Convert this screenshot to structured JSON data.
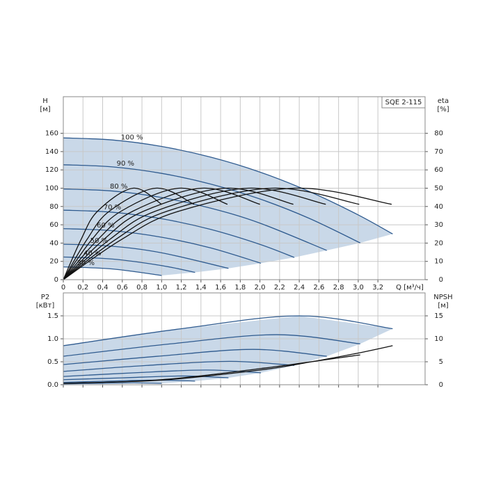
{
  "chart_data": [
    {
      "type": "line",
      "title": "SQE 2-115",
      "y_label": "H",
      "y_unit": "[м]",
      "y2_label": "eta",
      "y2_unit": "[%]",
      "x_label": "Q [м³/ч]",
      "xlim": [
        0,
        3.68
      ],
      "ylim": [
        0,
        200
      ],
      "y2lim": [
        0,
        100
      ],
      "grid": true,
      "x_tick_labels": true,
      "area_color": "#c9d8e8",
      "xticks": [
        0,
        {
          "value": 0.2,
          "label": "0,2"
        },
        {
          "value": 0.4,
          "label": "0,4"
        },
        {
          "value": 0.6,
          "label": "0,6"
        },
        {
          "value": 0.8,
          "label": "0,8"
        },
        {
          "value": 1.0,
          "label": "1,0"
        },
        {
          "value": 1.2,
          "label": "1,2"
        },
        {
          "value": 1.4,
          "label": "1,4"
        },
        {
          "value": 1.6,
          "label": "1,6"
        },
        {
          "value": 1.8,
          "label": "1,8"
        },
        {
          "value": 2.0,
          "label": "2,0"
        },
        {
          "value": 2.2,
          "label": "2,2"
        },
        {
          "value": 2.4,
          "label": "2,4"
        },
        {
          "value": 2.6,
          "label": "2,6"
        },
        {
          "value": 2.8,
          "label": "2,8"
        },
        {
          "value": 3.0,
          "label": "3,0"
        },
        {
          "value": 3.2,
          "label": "3,2"
        }
      ],
      "yticks": [
        0,
        20,
        40,
        60,
        80,
        100,
        120,
        140,
        160
      ],
      "y2ticks": [
        0,
        10,
        20,
        30,
        40,
        50,
        60,
        70,
        80
      ],
      "series": [
        {
          "name": "100 %",
          "color": "#2f5b8f",
          "x": [
            0,
            0.5,
            1,
            1.5,
            2,
            2.5,
            3,
            3.35
          ],
          "values": [
            155,
            152.7,
            145.6,
            133.9,
            117.6,
            96.5,
            70.8,
            50
          ]
        },
        {
          "name": "90 %",
          "color": "#2f5b8f",
          "x": [
            0,
            0.5,
            1,
            1.5,
            2,
            2.5,
            3.02
          ],
          "values": [
            125.6,
            123.3,
            116.2,
            104.5,
            88.2,
            67.1,
            40.2
          ]
        },
        {
          "name": "80 %",
          "color": "#2f5b8f",
          "x": [
            0,
            0.5,
            1,
            1.5,
            2,
            2.68
          ],
          "values": [
            99.2,
            96.9,
            89.8,
            78.1,
            61.8,
            32
          ]
        },
        {
          "name": "70 %",
          "color": "#2f5b8f",
          "x": [
            0,
            0.5,
            1,
            1.5,
            2,
            2.35
          ],
          "values": [
            76,
            73.7,
            66.6,
            54.9,
            38.6,
            24.3
          ]
        },
        {
          "name": "60 %",
          "color": "#2f5b8f",
          "x": [
            0,
            0.5,
            1,
            1.5,
            2.01
          ],
          "values": [
            55.8,
            53.5,
            46.4,
            34.7,
            18
          ]
        },
        {
          "name": "50 %",
          "color": "#2f5b8f",
          "x": [
            0,
            0.5,
            1,
            1.68
          ],
          "values": [
            38.8,
            36.5,
            29.4,
            12.4
          ]
        },
        {
          "name": "40 %",
          "color": "#2f5b8f",
          "x": [
            0,
            0.5,
            1,
            1.34
          ],
          "values": [
            24.8,
            22.5,
            15.4,
            8
          ]
        },
        {
          "name": "30 %",
          "color": "#2f5b8f",
          "x": [
            0,
            0.5,
            1
          ],
          "values": [
            14,
            11.7,
            4.6
          ]
        },
        {
          "axis": "y2",
          "color": "#111111",
          "x": [
            0,
            0.59,
            1.18,
            2.35,
            3.34
          ],
          "values": [
            0,
            21.9,
            37.5,
            50,
            41.2
          ]
        },
        {
          "axis": "y2",
          "color": "#111111",
          "x": [
            0,
            0.53,
            1.06,
            2.12,
            3.01
          ],
          "values": [
            0,
            21.9,
            37.5,
            50,
            41.2
          ]
        },
        {
          "axis": "y2",
          "color": "#111111",
          "x": [
            0,
            0.47,
            0.94,
            1.88,
            2.67
          ],
          "values": [
            0,
            21.9,
            37.5,
            50,
            41.2
          ]
        },
        {
          "axis": "y2",
          "color": "#111111",
          "x": [
            0,
            0.41,
            0.82,
            1.65,
            2.34
          ],
          "values": [
            0,
            21.9,
            37.5,
            50,
            41.2
          ]
        },
        {
          "axis": "y2",
          "color": "#111111",
          "x": [
            0,
            0.35,
            0.71,
            1.41,
            2.0
          ],
          "values": [
            0,
            21.9,
            37.5,
            50,
            41.2
          ]
        },
        {
          "axis": "y2",
          "color": "#111111",
          "x": [
            0,
            0.29,
            0.59,
            1.18,
            1.67
          ],
          "values": [
            0,
            21.9,
            37.5,
            50,
            41.2
          ]
        },
        {
          "axis": "y2",
          "color": "#111111",
          "x": [
            0,
            0.24,
            0.47,
            0.94,
            1.33
          ],
          "values": [
            0,
            21.9,
            37.5,
            50,
            41.2
          ]
        },
        {
          "axis": "y2",
          "color": "#111111",
          "x": [
            0,
            0.18,
            0.35,
            0.71,
            1.0
          ],
          "values": [
            0,
            21.9,
            37.5,
            50,
            41.2
          ]
        }
      ]
    },
    {
      "type": "line",
      "y_label": "P2",
      "y_unit": "[кВт]",
      "y2_label": "NPSH",
      "y2_unit": "[м]",
      "xlim": [
        0,
        3.68
      ],
      "ylim": [
        0,
        2.0
      ],
      "y2lim": [
        0,
        20
      ],
      "grid": true,
      "x_tick_labels": false,
      "area_color": "#c9d8e8",
      "xticks": [
        0,
        0.2,
        0.4,
        0.6,
        0.8,
        1.0,
        1.2,
        1.4,
        1.6,
        1.8,
        2.0,
        2.2,
        2.4,
        2.6,
        2.8,
        3.0,
        3.2
      ],
      "yticks": [
        {
          "value": 0,
          "label": "0.0"
        },
        0.5,
        {
          "value": 1,
          "label": "1.0"
        },
        1.5
      ],
      "y2ticks": [
        0,
        5,
        10,
        15
      ],
      "series": [
        {
          "color": "#2f5b8f",
          "x": [
            0,
            1.2,
            2.4,
            3.35
          ],
          "values": [
            0.85,
            1.22,
            1.5,
            1.22
          ]
        },
        {
          "color": "#2f5b8f",
          "x": [
            0,
            1.09,
            2.17,
            3.02
          ],
          "values": [
            0.62,
            0.89,
            1.09,
            0.89
          ]
        },
        {
          "color": "#2f5b8f",
          "x": [
            0,
            0.96,
            1.93,
            2.68
          ],
          "values": [
            0.44,
            0.62,
            0.77,
            0.62
          ]
        },
        {
          "color": "#2f5b8f",
          "x": [
            0,
            0.85,
            1.69,
            2.35
          ],
          "values": [
            0.29,
            0.42,
            0.51,
            0.42
          ]
        },
        {
          "color": "#2f5b8f",
          "x": [
            0,
            0.72,
            1.45,
            2.01
          ],
          "values": [
            0.18,
            0.26,
            0.32,
            0.26
          ]
        },
        {
          "color": "#2f5b8f",
          "x": [
            0,
            0.6,
            1.21,
            1.68
          ],
          "values": [
            0.11,
            0.15,
            0.19,
            0.15
          ]
        },
        {
          "color": "#2f5b8f",
          "x": [
            0,
            0.48,
            0.96,
            1.34
          ],
          "values": [
            0.05,
            0.08,
            0.1,
            0.08
          ]
        },
        {
          "color": "#2f5b8f",
          "x": [
            0,
            0.36,
            0.72,
            1.0
          ],
          "values": [
            0.02,
            0.03,
            0.04,
            0.03
          ]
        },
        {
          "axis": "y2",
          "color": "#111111",
          "x": [
            0,
            1,
            2,
            2.5,
            3,
            3.35
          ],
          "values": [
            0.3,
            1,
            3.2,
            4.9,
            6.9,
            8.5
          ]
        },
        {
          "axis": "y2",
          "color": "#111111",
          "x": [
            0,
            1,
            2,
            3.02
          ],
          "values": [
            0.3,
            1.1,
            3.5,
            6.5
          ]
        }
      ]
    }
  ]
}
